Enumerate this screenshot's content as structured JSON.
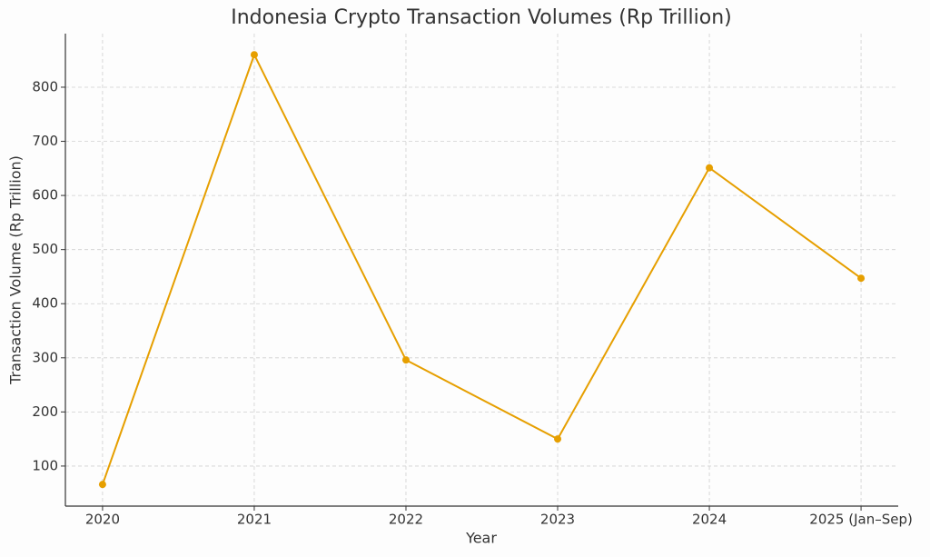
{
  "chart_data": {
    "type": "line",
    "title": "Indonesia Crypto Transaction Volumes (Rp Trillion)",
    "x_label": "Year",
    "y_label": "Transaction Volume (Rp Trillion)",
    "categories": [
      "2020",
      "2021",
      "2022",
      "2023",
      "2024",
      "2025 (Jan–Sep)"
    ],
    "series": [
      {
        "name": "Transaction Volume",
        "color": "#e69f00",
        "values": [
          66,
          860,
          296,
          150,
          651,
          447
        ]
      }
    ],
    "ylim": [
      26,
      899
    ],
    "yticks": [
      100,
      200,
      300,
      400,
      500,
      600,
      700,
      800
    ],
    "grid": true
  }
}
